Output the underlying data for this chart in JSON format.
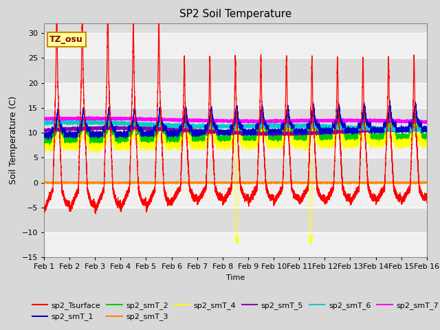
{
  "title": "SP2 Soil Temperature",
  "xlabel": "Time",
  "ylabel": "Soil Temperature (C)",
  "ylim": [
    -15,
    32
  ],
  "xlim": [
    0,
    15
  ],
  "xtick_labels": [
    "Feb 1",
    "Feb 2",
    "Feb 3",
    "Feb 4",
    "Feb 5",
    "Feb 6",
    "Feb 7",
    "Feb 8",
    "Feb 9",
    "Feb 10",
    "Feb 11",
    "Feb 12",
    "Feb 13",
    "Feb 14",
    "Feb 15",
    "Feb 16"
  ],
  "yticks": [
    -15,
    -10,
    -5,
    0,
    5,
    10,
    15,
    20,
    25,
    30
  ],
  "colors": {
    "sp2_Tsurface": "#FF0000",
    "sp2_smT_1": "#0000CC",
    "sp2_smT_2": "#00CC00",
    "sp2_smT_3": "#FF8800",
    "sp2_smT_4": "#FFFF00",
    "sp2_smT_5": "#8800AA",
    "sp2_smT_6": "#00CCCC",
    "sp2_smT_7": "#FF00FF"
  },
  "annotation_text": "TZ_osu",
  "annotation_color": "#880000",
  "annotation_bg": "#FFFF99",
  "annotation_border": "#CC8800",
  "fig_bg": "#D8D8D8",
  "plot_bg_dark": "#DCDCDC",
  "plot_bg_light": "#F0F0F0",
  "grid_color": "#FFFFFF",
  "num_points": 15000,
  "days": 15
}
